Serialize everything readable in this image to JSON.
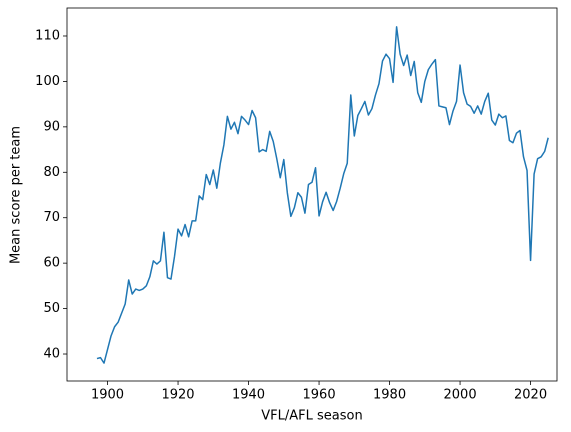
{
  "chart_data": {
    "type": "line",
    "xlabel": "VFL/AFL season",
    "ylabel": "Mean score per team",
    "x": [
      1897,
      1898,
      1899,
      1900,
      1901,
      1902,
      1903,
      1904,
      1905,
      1906,
      1907,
      1908,
      1909,
      1910,
      1911,
      1912,
      1913,
      1914,
      1915,
      1916,
      1917,
      1918,
      1919,
      1920,
      1921,
      1922,
      1923,
      1924,
      1925,
      1926,
      1927,
      1928,
      1929,
      1930,
      1931,
      1932,
      1933,
      1934,
      1935,
      1936,
      1937,
      1938,
      1939,
      1940,
      1941,
      1942,
      1943,
      1944,
      1945,
      1946,
      1947,
      1948,
      1949,
      1950,
      1951,
      1952,
      1953,
      1954,
      1955,
      1956,
      1957,
      1958,
      1959,
      1960,
      1961,
      1962,
      1963,
      1964,
      1965,
      1966,
      1967,
      1968,
      1969,
      1970,
      1971,
      1972,
      1973,
      1974,
      1975,
      1976,
      1977,
      1978,
      1979,
      1980,
      1981,
      1982,
      1983,
      1984,
      1985,
      1986,
      1987,
      1988,
      1989,
      1990,
      1991,
      1992,
      1993,
      1994,
      1995,
      1996,
      1997,
      1998,
      1999,
      2000,
      2001,
      2002,
      2003,
      2004,
      2005,
      2006,
      2007,
      2008,
      2009,
      2010,
      2011,
      2012,
      2013,
      2014,
      2015,
      2016,
      2017,
      2018,
      2019,
      2020,
      2021,
      2022,
      2023,
      2024,
      2025
    ],
    "series": [
      {
        "color": "#1f77b4",
        "values": [
          39,
          39.2,
          38,
          41,
          44,
          46,
          47,
          49,
          51,
          56.3,
          53.2,
          54.3,
          54,
          54.3,
          55,
          57,
          60.5,
          59.8,
          60.5,
          66.8,
          56.8,
          56.5,
          61.5,
          67.5,
          66,
          68.5,
          65.8,
          69.3,
          69.3,
          74.8,
          74,
          79.5,
          77.3,
          80.5,
          76.5,
          82,
          86,
          92.3,
          89.5,
          91,
          88.5,
          92.3,
          91.5,
          90.5,
          93.6,
          92,
          84.5,
          85,
          84.6,
          89,
          86.8,
          83,
          78.8,
          82.8,
          75.5,
          70.3,
          72.2,
          75.5,
          74.5,
          71,
          77.3,
          77.8,
          81,
          70.4,
          73.5,
          75.6,
          73.3,
          71.6,
          73.6,
          76.5,
          79.7,
          82,
          97,
          88,
          92.5,
          94,
          95.6,
          92.6,
          94,
          97,
          99.5,
          104.5,
          106,
          105,
          99.8,
          112,
          106,
          103.5,
          105.8,
          101.3,
          104.4,
          97.5,
          95.4,
          100,
          102.6,
          103.8,
          104.8,
          94.6,
          94.4,
          94.2,
          90.5,
          93.5,
          95.6,
          103.6,
          97.5,
          95,
          94.5,
          93,
          94.6,
          92.8,
          95.6,
          97.4,
          91.5,
          90.4,
          92.8,
          92,
          92.4,
          87,
          86.5,
          88.6,
          89.2,
          83.4,
          80.4,
          60.6,
          79.6,
          83,
          83.4,
          84.6,
          87.6
        ]
      }
    ],
    "xlim": [
      1888.5,
      2027.5
    ],
    "xticks": [
      1900,
      1920,
      1940,
      1960,
      1980,
      2000,
      2020
    ],
    "ylim": [
      34.06,
      116.16
    ],
    "yticks": [
      40,
      50,
      60,
      70,
      80,
      90,
      100,
      110
    ]
  }
}
